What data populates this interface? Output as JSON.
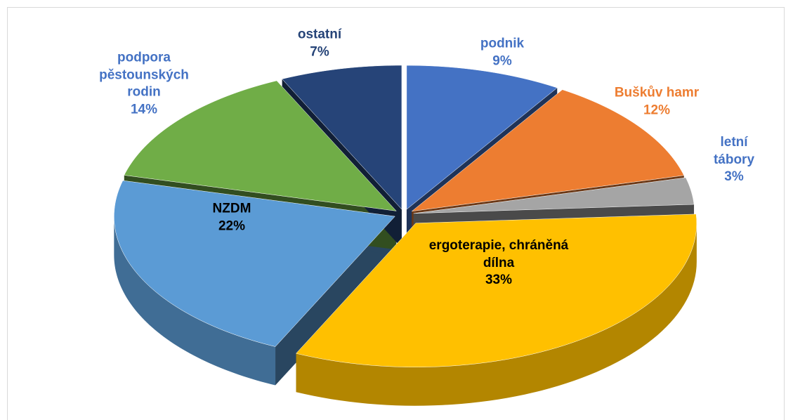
{
  "chart_data": {
    "type": "pie3d",
    "categories": [
      "podnik",
      "Buškův hamr",
      "letní tábory",
      "ergoterapie, chráněná dílna",
      "NZDM",
      "podpora pěstounských rodin",
      "ostatní"
    ],
    "values": [
      9,
      12,
      3,
      33,
      22,
      14,
      7
    ],
    "value_labels": [
      "9%",
      "12%",
      "3%",
      "33%",
      "22%",
      "14%",
      "7%"
    ],
    "colors": [
      "#4472c4",
      "#ed7d31",
      "#a5a5a5",
      "#ffc000",
      "#5b9bd5",
      "#70ad47",
      "#264478"
    ],
    "label_colors": [
      "#4472c4",
      "#ed7d31",
      "#4472c4",
      "#000000",
      "#000000",
      "#4472c4",
      "#264478"
    ]
  }
}
